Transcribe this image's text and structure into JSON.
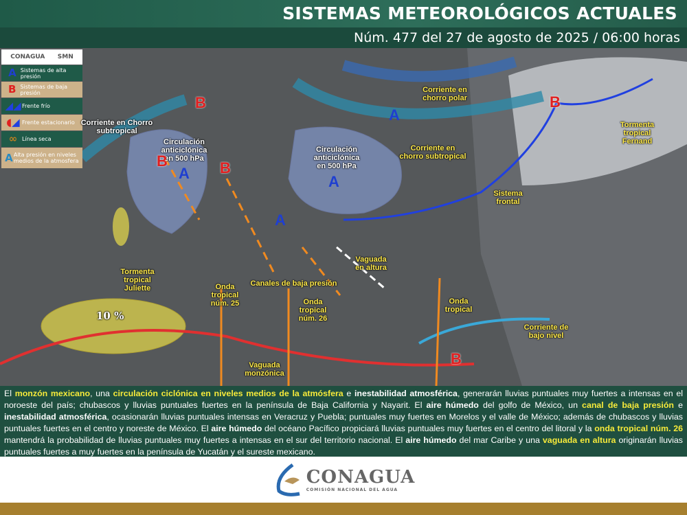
{
  "header": {
    "title": "SISTEMAS METEOROLÓGICOS ACTUALES",
    "subtitle": "Núm. 477 del 27 de agosto de 2025 / 06:00 horas"
  },
  "legend": {
    "logos": [
      "CONAGUA",
      "SMN"
    ],
    "items": [
      {
        "icon": "A",
        "label": "Sistemas de alta presión"
      },
      {
        "icon": "B",
        "label": "Sistemas de baja presión"
      },
      {
        "icon": "cold-front-icon",
        "label": "Frente frío"
      },
      {
        "icon": "stationary-front-icon",
        "label": "Frente estacionario"
      },
      {
        "icon": "dry-line-icon",
        "label": "Línea seca"
      },
      {
        "icon": "A",
        "label": "Alta presión en niveles medios de la atmosfera"
      }
    ]
  },
  "map": {
    "labels": [
      "Corriente en Chorro subtropical",
      "Circulación anticiclónica en 500 hPa",
      "Circulación anticiclónica en 500 hPa",
      "Corriente en chorro polar",
      "Corriente en chorro subtropical",
      "Sistema frontal",
      "Tormenta tropical Fernand",
      "Tormenta tropical Juliette",
      "Onda tropical núm. 25",
      "Canales de baja presión",
      "Onda tropical núm. 26",
      "Vaguada en altura",
      "Onda tropical",
      "Corriente de bajo nivel",
      "Vaguada monzónica"
    ],
    "probability": "10 %",
    "highs": [
      "A",
      "A",
      "A",
      "A"
    ],
    "lows": [
      "B",
      "B",
      "B",
      "B",
      "B"
    ],
    "colors": {
      "high": "#1f3fd0",
      "low": "#e02020",
      "jet": "#2e8aa8",
      "trough": "#f08a20",
      "monsoon": "#e03030"
    }
  },
  "bulletin": [
    {
      "t": "El ",
      "s": ""
    },
    {
      "t": "monzón mexicano",
      "s": "y"
    },
    {
      "t": ", una ",
      "s": ""
    },
    {
      "t": "circulación ciclónica en niveles medios de la atmósfera",
      "s": "y"
    },
    {
      "t": " e ",
      "s": ""
    },
    {
      "t": "inestabilidad atmosférica",
      "s": "b"
    },
    {
      "t": ", generarán lluvias puntuales muy fuertes a intensas en el noroeste del país; chubascos y lluvias puntuales fuertes en la península de Baja California y Nayarit. El ",
      "s": ""
    },
    {
      "t": "aire húmedo",
      "s": "b"
    },
    {
      "t": " del golfo de México, un ",
      "s": ""
    },
    {
      "t": "canal de baja presión",
      "s": "y"
    },
    {
      "t": " e ",
      "s": ""
    },
    {
      "t": "inestabilidad atmosférica",
      "s": "b"
    },
    {
      "t": ", ocasionarán lluvias puntuales intensas en Veracruz y Puebla; puntuales muy fuertes en Morelos y el valle de México; además de chubascos y lluvias puntuales fuertes en el centro y noreste de México. El ",
      "s": ""
    },
    {
      "t": "aire húmedo",
      "s": "b"
    },
    {
      "t": " del océano Pacífico propiciará lluvias puntuales muy fuertes en el centro del litoral y la ",
      "s": ""
    },
    {
      "t": "onda tropical núm. 26",
      "s": "y"
    },
    {
      "t": " mantendrá la probabilidad de lluvias puntuales muy fuertes a intensas en el sur del territorio nacional. El ",
      "s": ""
    },
    {
      "t": "aire húmedo",
      "s": "b"
    },
    {
      "t": " del mar Caribe y una ",
      "s": ""
    },
    {
      "t": "vaguada en altura",
      "s": "y"
    },
    {
      "t": " originarán lluvias puntuales fuertes a muy fuertes en la península de Yucatán y el sureste mexicano.",
      "s": ""
    }
  ],
  "footer": {
    "logo": "CONAGUA",
    "tagline": "COMISIÓN NACIONAL DEL AGUA"
  }
}
